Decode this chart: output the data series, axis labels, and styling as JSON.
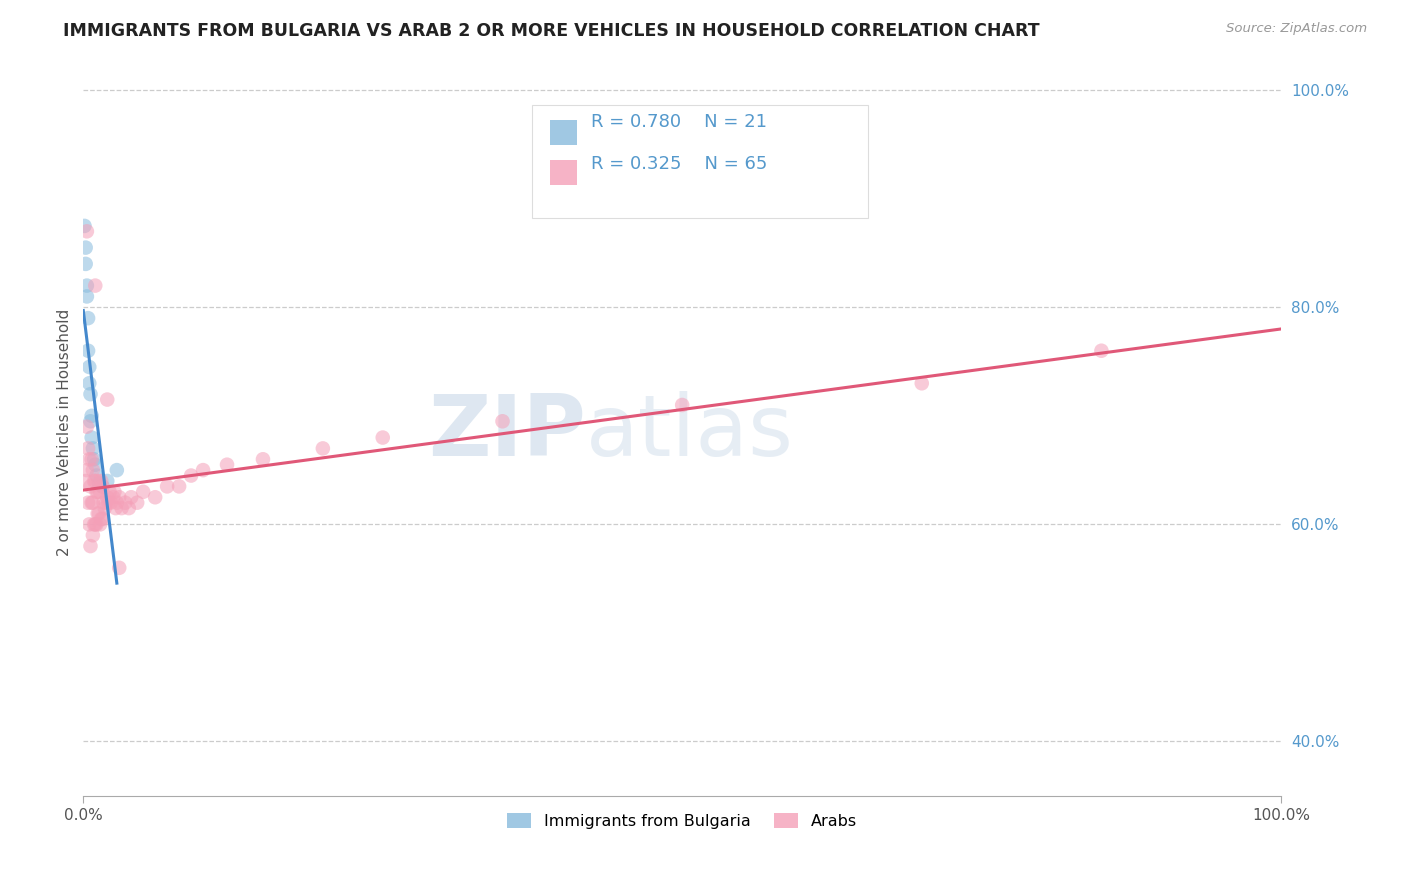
{
  "title": "IMMIGRANTS FROM BULGARIA VS ARAB 2 OR MORE VEHICLES IN HOUSEHOLD CORRELATION CHART",
  "source": "Source: ZipAtlas.com",
  "ylabel": "2 or more Vehicles in Household",
  "xlim": [
    0.0,
    1.0
  ],
  "ylim": [
    0.35,
    1.02
  ],
  "grid_yticks": [
    0.4,
    0.6,
    0.8,
    1.0
  ],
  "right_ytick_labels": [
    "40.0%",
    "60.0%",
    "80.0%",
    "100.0%"
  ],
  "xtick_labels": [
    "0.0%",
    "100.0%"
  ],
  "watermark": "ZIPatlas",
  "bg_color": "#ffffff",
  "blue_color": "#88bbdd",
  "pink_color": "#f4a0b8",
  "blue_line_color": "#4488cc",
  "pink_line_color": "#e05878",
  "grid_color": "#cccccc",
  "title_color": "#222222",
  "right_tick_color": "#5599cc",
  "scatter_alpha": 0.55,
  "dot_size": 110,
  "bul_x": [
    0.001,
    0.002,
    0.002,
    0.003,
    0.003,
    0.004,
    0.004,
    0.005,
    0.005,
    0.006,
    0.006,
    0.007,
    0.007,
    0.008,
    0.009,
    0.01,
    0.011,
    0.013,
    0.016,
    0.02,
    0.028
  ],
  "bul_y": [
    0.875,
    0.855,
    0.84,
    0.82,
    0.81,
    0.79,
    0.76,
    0.745,
    0.73,
    0.72,
    0.695,
    0.7,
    0.68,
    0.67,
    0.66,
    0.655,
    0.645,
    0.638,
    0.635,
    0.64,
    0.65
  ],
  "arab_x": [
    0.002,
    0.003,
    0.003,
    0.004,
    0.004,
    0.005,
    0.005,
    0.006,
    0.006,
    0.007,
    0.007,
    0.008,
    0.008,
    0.008,
    0.009,
    0.009,
    0.01,
    0.01,
    0.011,
    0.011,
    0.012,
    0.012,
    0.013,
    0.013,
    0.014,
    0.014,
    0.015,
    0.015,
    0.016,
    0.016,
    0.017,
    0.018,
    0.019,
    0.02,
    0.021,
    0.022,
    0.023,
    0.025,
    0.026,
    0.027,
    0.028,
    0.03,
    0.032,
    0.035,
    0.038,
    0.04,
    0.045,
    0.05,
    0.06,
    0.07,
    0.08,
    0.09,
    0.1,
    0.12,
    0.15,
    0.2,
    0.25,
    0.35,
    0.5,
    0.7,
    0.85,
    0.003,
    0.01,
    0.02,
    0.03
  ],
  "arab_y": [
    0.64,
    0.69,
    0.65,
    0.67,
    0.62,
    0.66,
    0.6,
    0.635,
    0.58,
    0.66,
    0.62,
    0.65,
    0.62,
    0.59,
    0.64,
    0.6,
    0.64,
    0.6,
    0.63,
    0.6,
    0.63,
    0.61,
    0.64,
    0.61,
    0.63,
    0.6,
    0.64,
    0.605,
    0.635,
    0.605,
    0.62,
    0.615,
    0.62,
    0.625,
    0.62,
    0.63,
    0.62,
    0.625,
    0.63,
    0.615,
    0.62,
    0.625,
    0.615,
    0.62,
    0.615,
    0.625,
    0.62,
    0.63,
    0.625,
    0.635,
    0.635,
    0.645,
    0.65,
    0.655,
    0.66,
    0.67,
    0.68,
    0.695,
    0.71,
    0.73,
    0.76,
    0.87,
    0.82,
    0.715,
    0.56
  ],
  "blue_line_x0": 0.0,
  "blue_line_x1": 0.028,
  "pink_line_x0": 0.0,
  "pink_line_x1": 1.0,
  "legend_r1": "R = 0.780",
  "legend_n1": "N = 21",
  "legend_r2": "R = 0.325",
  "legend_n2": "N = 65",
  "legend_label1": "Immigrants from Bulgaria",
  "legend_label2": "Arabs"
}
